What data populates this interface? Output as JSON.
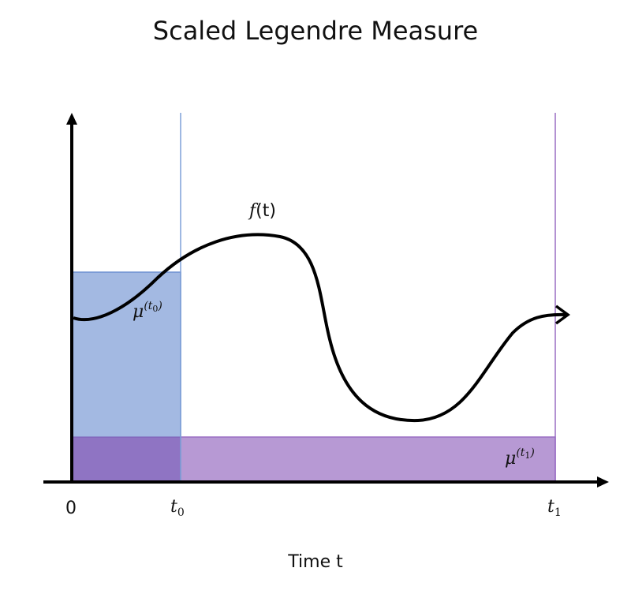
{
  "title": "Scaled Legendre Measure",
  "x_axis_label": "Time t",
  "ticks": {
    "zero": "0",
    "t0_base": "t",
    "t0_sub": "0",
    "t1_base": "t",
    "t1_sub": "1"
  },
  "curve_label": {
    "f": "f",
    "arg": "(t)"
  },
  "measures": [
    {
      "label_base": "μ",
      "label_sup_open": "(t",
      "label_sup_sub": "0",
      "label_sup_close": ")",
      "color": "#6f90d2"
    },
    {
      "label_base": "μ",
      "label_sup_open": "(t",
      "label_sup_sub": "1",
      "label_sup_close": ")",
      "color": "#a77cc9"
    }
  ],
  "colors": {
    "blue_fill": "#8aa9da",
    "purple_fill": "#a77cc9",
    "overlap": "#8b6bc0",
    "curve": "#000000"
  }
}
